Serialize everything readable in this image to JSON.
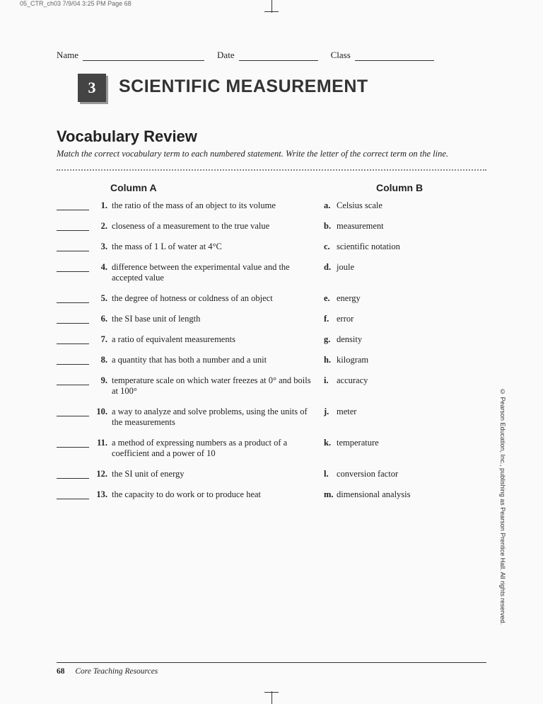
{
  "print_header": "05_CTR_ch03  7/9/04  3:25 PM  Page 68",
  "info": {
    "name_label": "Name",
    "date_label": "Date",
    "class_label": "Class"
  },
  "chapter": {
    "number": "3",
    "title": "SCIENTIFIC MEASUREMENT"
  },
  "section_title": "Vocabulary Review",
  "instructions": "Match the correct vocabulary term to each numbered statement. Write the letter of the correct term on the line.",
  "headers": {
    "col_a": "Column A",
    "col_b": "Column B"
  },
  "items": [
    {
      "num": "1.",
      "a": "the ratio of the mass of an object to its volume",
      "letter": "a.",
      "b": "Celsius scale"
    },
    {
      "num": "2.",
      "a": "closeness of a measurement to the true value",
      "letter": "b.",
      "b": "measurement"
    },
    {
      "num": "3.",
      "a": "the mass of 1 L of water at 4°C",
      "letter": "c.",
      "b": "scientific notation"
    },
    {
      "num": "4.",
      "a": "difference between the experimental value and the accepted value",
      "letter": "d.",
      "b": "joule"
    },
    {
      "num": "5.",
      "a": "the degree of hotness or coldness of an object",
      "letter": "e.",
      "b": "energy"
    },
    {
      "num": "6.",
      "a": "the SI base unit of length",
      "letter": "f.",
      "b": "error"
    },
    {
      "num": "7.",
      "a": "a ratio of equivalent measurements",
      "letter": "g.",
      "b": "density"
    },
    {
      "num": "8.",
      "a": "a quantity that has both a number and a unit",
      "letter": "h.",
      "b": "kilogram"
    },
    {
      "num": "9.",
      "a": "temperature scale on which water freezes at 0° and boils at 100°",
      "letter": "i.",
      "b": "accuracy"
    },
    {
      "num": "10.",
      "a": "a way to analyze and solve problems, using the units of the measurements",
      "letter": "j.",
      "b": "meter"
    },
    {
      "num": "11.",
      "a": "a method of expressing numbers as a product of a coefficient and a power of 10",
      "letter": "k.",
      "b": "temperature"
    },
    {
      "num": "12.",
      "a": "the SI unit of energy",
      "letter": "l.",
      "b": "conversion factor"
    },
    {
      "num": "13.",
      "a": "the capacity to do work or to produce heat",
      "letter": "m.",
      "b": "dimensional analysis"
    }
  ],
  "copyright": "© Pearson Education, Inc., publishing as Pearson Prentice Hall. All rights reserved.",
  "footer": {
    "page_number": "68",
    "title": "Core Teaching Resources"
  }
}
